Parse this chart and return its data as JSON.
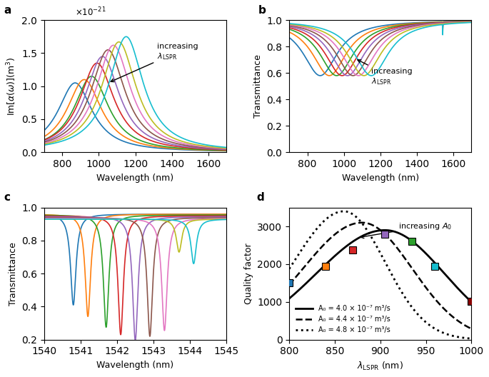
{
  "colors9": [
    "#1f77b4",
    "#ff7f0e",
    "#2ca02c",
    "#d62728",
    "#9467bd",
    "#8c564b",
    "#e377c2",
    "#bcbd22",
    "#17becf"
  ],
  "lspr_peaks_a": [
    870,
    920,
    960,
    990,
    1020,
    1050,
    1080,
    1110,
    1150
  ],
  "panel_a": {
    "xlabel": "Wavelength (nm)",
    "ylabel": "Im[α(ω)](m³)",
    "xlim": [
      700,
      1700
    ],
    "ylim": [
      0,
      2.0
    ],
    "yticks": [
      0,
      0.5,
      1.0,
      1.5,
      2.0
    ],
    "xticks": [
      800,
      1000,
      1200,
      1400,
      1600
    ],
    "gamma": 230,
    "amps": [
      1.05,
      1.1,
      1.15,
      1.35,
      1.45,
      1.55,
      1.62,
      1.67,
      1.75
    ]
  },
  "panel_b": {
    "xlabel": "Wavelength (nm)",
    "ylabel": "Transmittance",
    "xlim": [
      700,
      1700
    ],
    "ylim": [
      0,
      1.0
    ],
    "yticks": [
      0,
      0.2,
      0.4,
      0.6,
      0.8,
      1.0
    ],
    "xticks": [
      800,
      1000,
      1200,
      1400,
      1600
    ],
    "fano_wl": 1542.0,
    "fano_gamma": 0.8
  },
  "panel_c": {
    "xlabel": "Wavelength (nm)",
    "ylabel": "Transmittance",
    "xlim": [
      1540,
      1545
    ],
    "ylim": [
      0.2,
      1.0
    ],
    "yticks": [
      0.2,
      0.4,
      0.6,
      0.8,
      1.0
    ],
    "xticks": [
      1540,
      1541,
      1542,
      1543,
      1544,
      1545
    ],
    "resonance_centers": [
      1540.8,
      1541.2,
      1541.7,
      1542.1,
      1542.5,
      1542.9,
      1543.3,
      1543.7,
      1544.1
    ],
    "dip_depths": [
      0.55,
      0.62,
      0.68,
      0.72,
      0.75,
      0.72,
      0.68,
      0.2,
      0.27
    ],
    "bg_vals": [
      0.96,
      0.96,
      0.955,
      0.95,
      0.945,
      0.94,
      0.935,
      0.93,
      0.93
    ],
    "fano_gamma_c": 0.18
  },
  "panel_d": {
    "xlabel": "λ_LSPR (nm)",
    "ylabel": "Quality factor",
    "xlim": [
      800,
      1000
    ],
    "ylim": [
      0,
      3500
    ],
    "yticks": [
      0,
      1000,
      2000,
      3000
    ],
    "xticks": [
      800,
      850,
      900,
      950,
      1000
    ],
    "curve_labels": [
      "A₀ = 4.0 × 10⁻⁷ m³/s",
      "A₀ = 4.4 × 10⁻⁷ m³/s",
      "A₀ = 4.8 × 10⁻⁷ m³/s"
    ],
    "marker_lspr": [
      800,
      840,
      870,
      905,
      935,
      960,
      1000
    ],
    "marker_colors": [
      "#1f77b4",
      "#ff7f0e",
      "#d62728",
      "#9467bd",
      "#2ca02c",
      "#17becf",
      "#8B0000"
    ],
    "marker_qf": [
      1500,
      1950,
      2380,
      2800,
      2600,
      1950,
      1020
    ]
  }
}
